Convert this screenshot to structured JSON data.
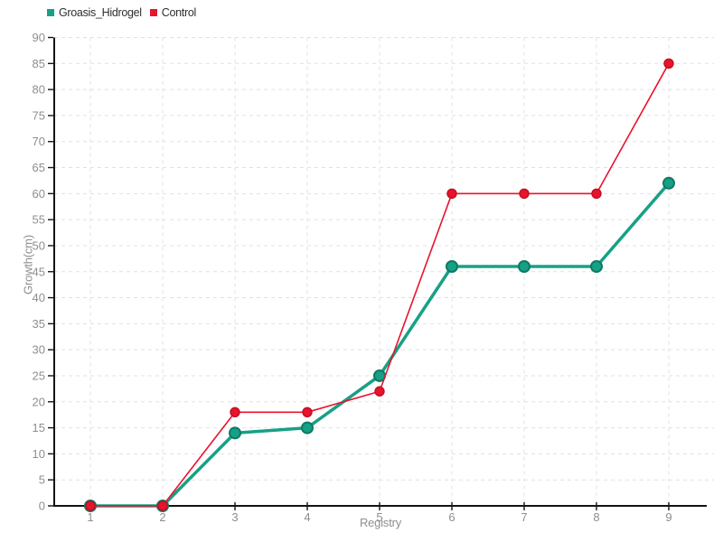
{
  "chart_data": {
    "type": "line",
    "title": "",
    "xlabel": "Registry",
    "ylabel": "Growth(cm)",
    "x": [
      1,
      2,
      3,
      4,
      5,
      6,
      7,
      8,
      9
    ],
    "x_tick_labels": [
      "1",
      "2",
      "3",
      "4",
      "5",
      "6",
      "7",
      "8",
      "9"
    ],
    "series": [
      {
        "name": "Groasis_Hidrogel",
        "color": "#18a086",
        "marker_stroke": "#0c7a63",
        "values": [
          0,
          0,
          14,
          15,
          25,
          46,
          46,
          46,
          62
        ]
      },
      {
        "name": "Control",
        "color": "#e8132c",
        "marker_stroke": "#c10e24",
        "values": [
          0,
          0,
          18,
          18,
          22,
          60,
          60,
          60,
          85
        ]
      }
    ],
    "ylim": [
      0,
      90
    ],
    "y_tick_step": 5,
    "grid": true,
    "grid_style": "dashed",
    "legend_position": "top-left",
    "colors": {
      "background": "#ffffff",
      "grid": "#e1e1e1",
      "axis": "#141414",
      "tick_labels": "#8e8e8e",
      "axis_titles": "#8e8e8e",
      "legend_text": "#2e2e2e"
    }
  }
}
